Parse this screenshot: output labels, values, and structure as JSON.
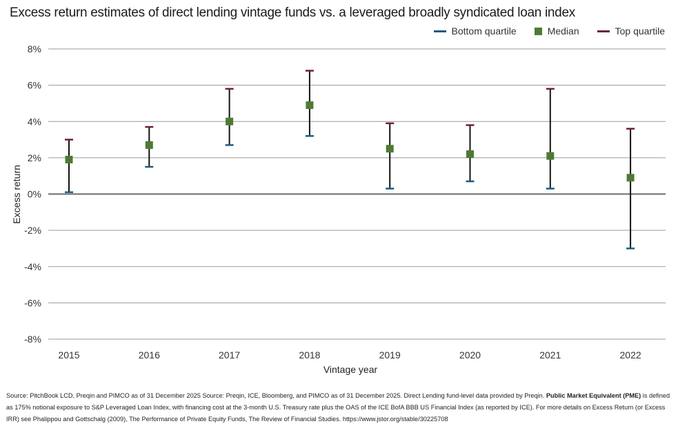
{
  "title": "Excess return estimates of direct lending vintage funds vs. a leveraged broadly syndicated loan index",
  "legend": [
    {
      "key": "bottom",
      "label": "Bottom quartile",
      "color": "#1f5a80",
      "shape": "line"
    },
    {
      "key": "median",
      "label": "Median",
      "color": "#4f7a35",
      "shape": "square"
    },
    {
      "key": "top",
      "label": "Top quartile",
      "color": "#6b1f3a",
      "shape": "line"
    }
  ],
  "chart_data": {
    "type": "scatter",
    "xlabel": "Vintage year",
    "ylabel": "Excess return",
    "ylim": [
      -8,
      8
    ],
    "yticks": [
      8,
      6,
      4,
      2,
      0,
      -2,
      -4,
      -6,
      -8
    ],
    "ytick_labels": [
      "8%",
      "6%",
      "4%",
      "2%",
      "0%",
      "-2%",
      "-4%",
      "-6%",
      "-8%"
    ],
    "categories": [
      "2015",
      "2016",
      "2017",
      "2018",
      "2019",
      "2020",
      "2021",
      "2022"
    ],
    "series": [
      {
        "name": "Bottom quartile",
        "values": [
          0.1,
          1.5,
          2.7,
          3.2,
          0.3,
          0.7,
          0.3,
          -3.0
        ]
      },
      {
        "name": "Median",
        "values": [
          1.9,
          2.7,
          4.0,
          4.9,
          2.5,
          2.2,
          2.1,
          0.9
        ]
      },
      {
        "name": "Top quartile",
        "values": [
          3.0,
          3.7,
          5.8,
          6.8,
          3.9,
          3.8,
          5.8,
          3.6
        ]
      }
    ],
    "grid": true,
    "legend_position": "top-right"
  },
  "footnote": {
    "part1": "Source: PitchBook LCD, Preqin and PIMCO as of 31 December 2025 Source: Preqin, ICE, Bloomberg, and PIMCO as of 31 December 2025. Direct Lending fund-level data provided by Preqin. ",
    "bold": "Public Market Equivalent (PME)",
    "part2": " is defined as 175% notional exposure to S&P Leveraged Loan Index, with financing cost at the 3-month U.S. Treasury rate plus the OAS of the ICE BofA BBB US Financial Index (as reported by ICE). For more details on Excess Return (or Excess IRR) see Phalippou and Gottschalg (2009), The Performance of Private Equity Funds, The Review of Financial Studies. https://www.jstor.org/stable/30225708"
  }
}
